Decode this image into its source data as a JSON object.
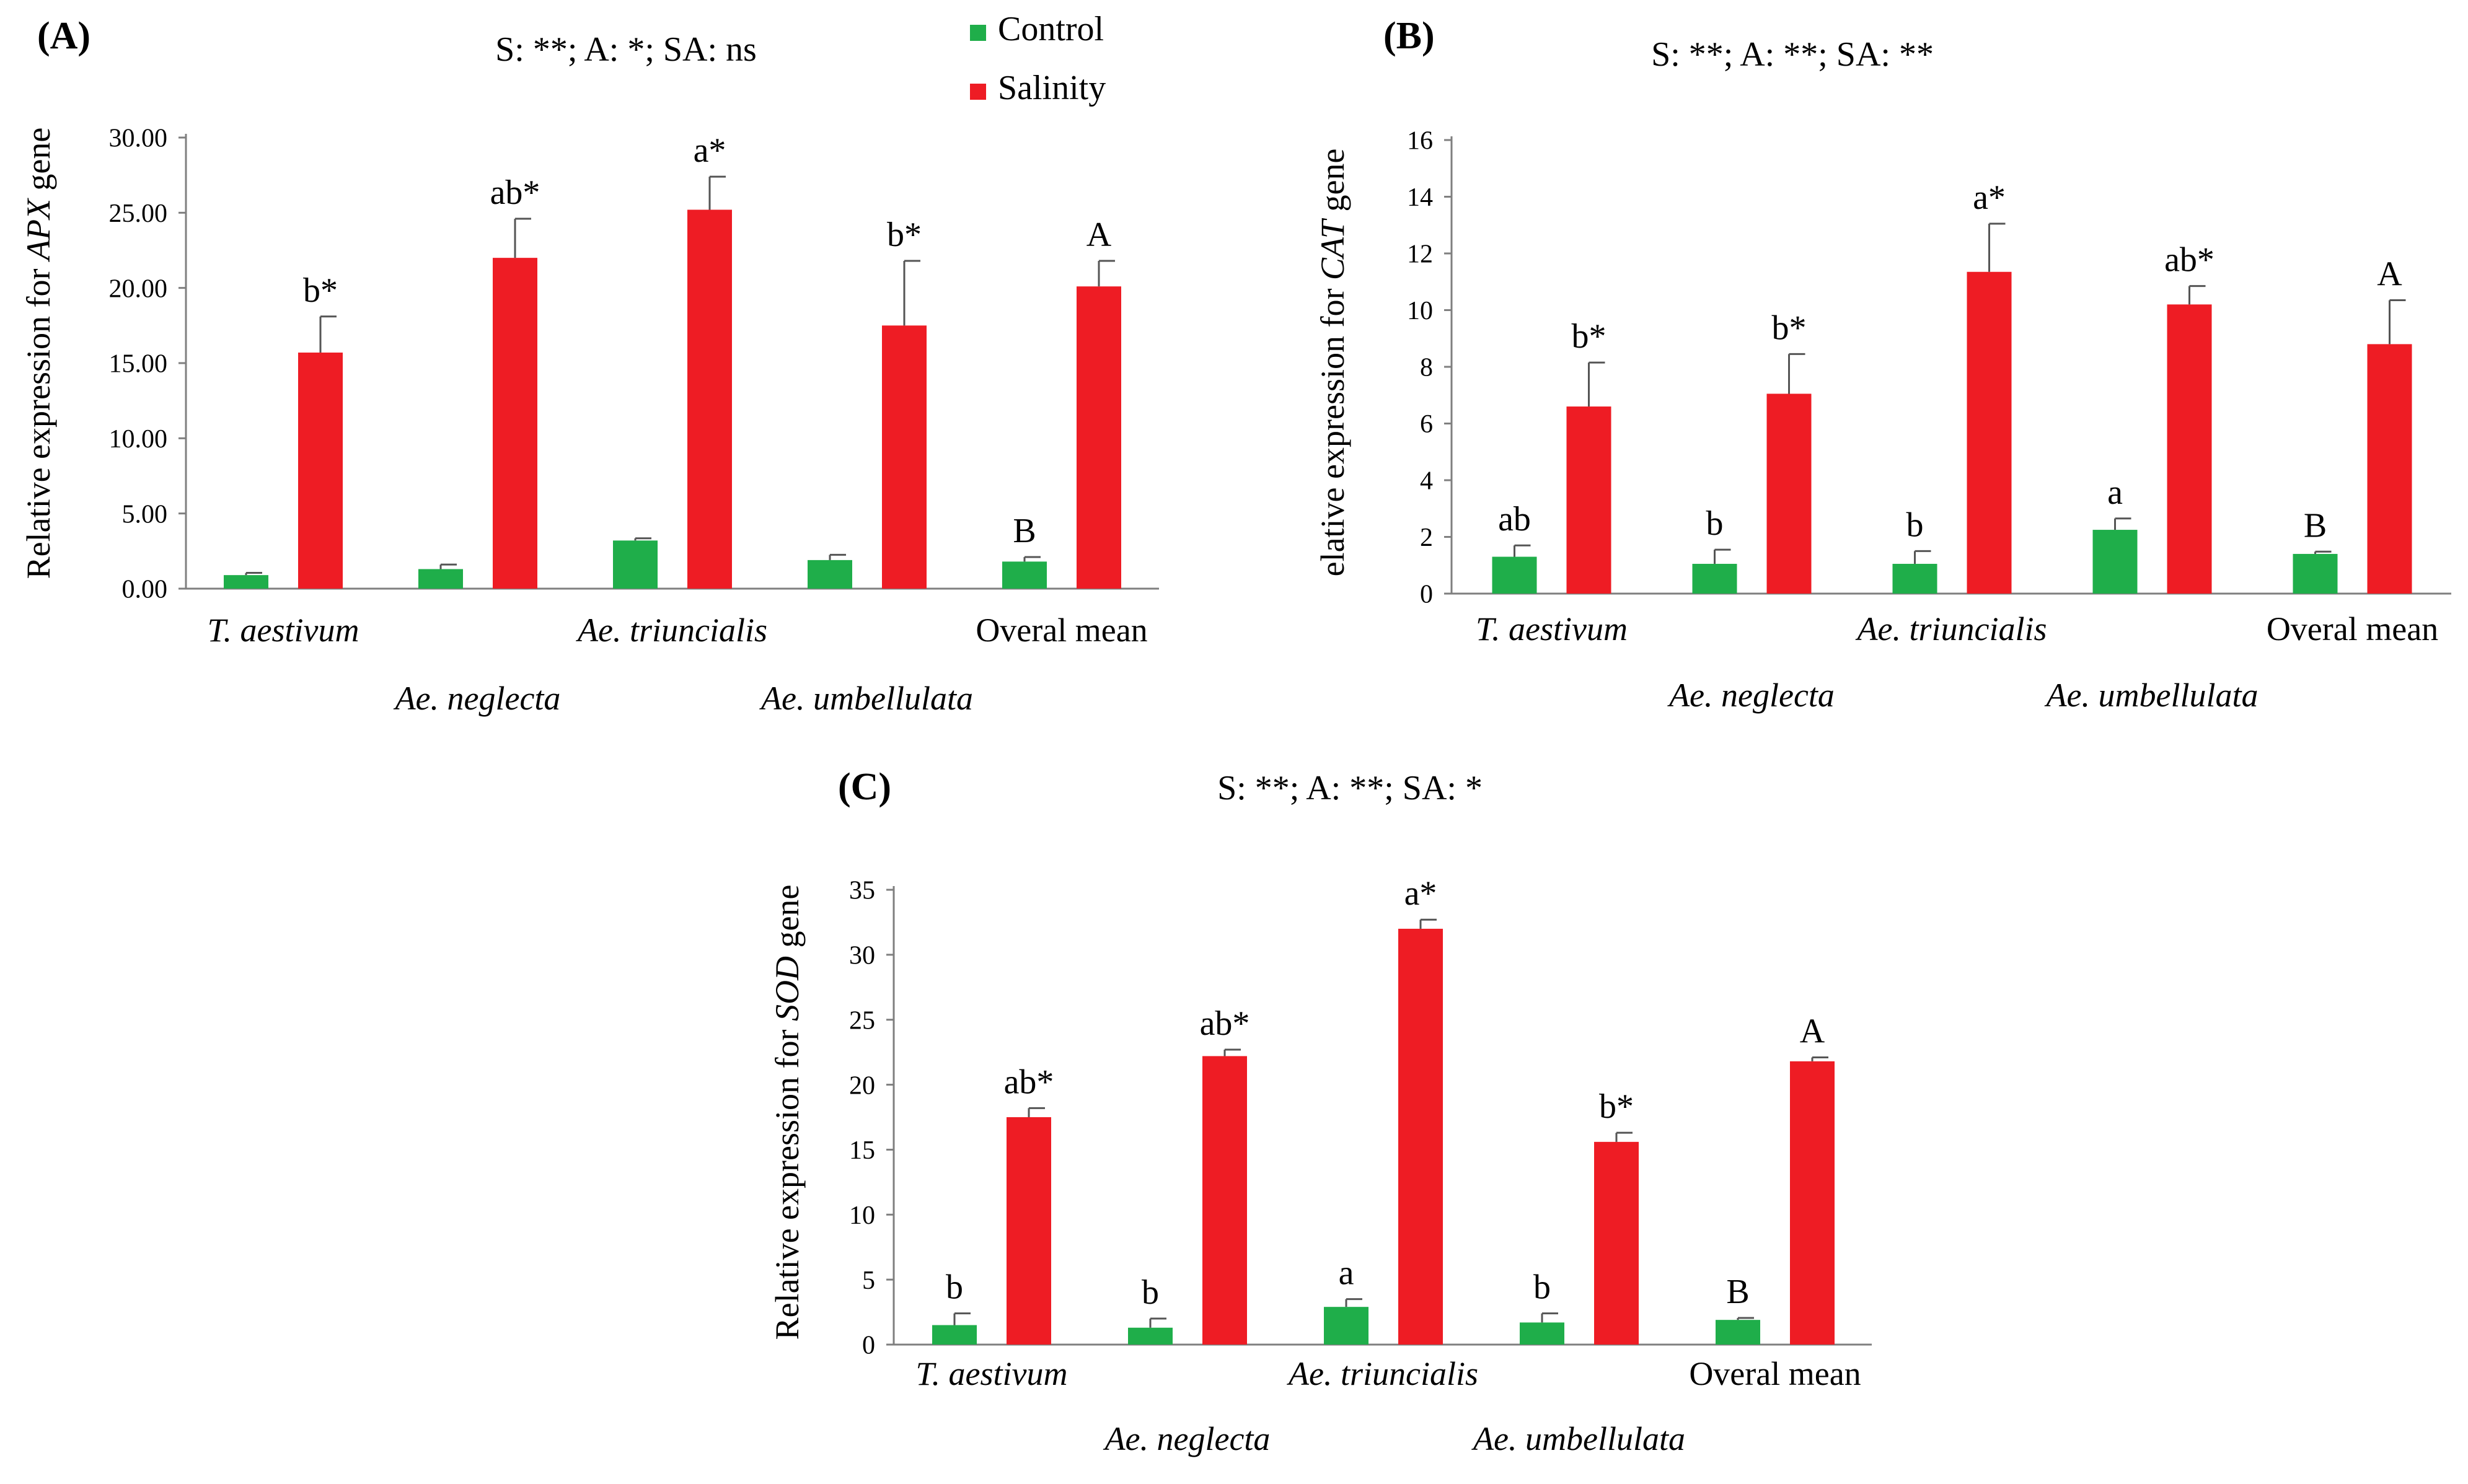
{
  "legend": {
    "placement": "top, between panels A and B",
    "items": [
      {
        "label": "Control",
        "color": "#1fae4a"
      },
      {
        "label": "Salinity",
        "color": "#ee1c24"
      }
    ]
  },
  "chart_data": [
    {
      "type": "bar",
      "panel_label": "(A)",
      "title": "S: **; A: *; SA: ns",
      "ylabel_prefix": "Relative expression for ",
      "ylabel_gene": "APX",
      "ylabel_suffix": " gene",
      "ylim": [
        0,
        30
      ],
      "yticks": [
        "0.00",
        "5.00",
        "10.00",
        "15.00",
        "20.00",
        "25.00",
        "30.00"
      ],
      "grid": false,
      "categories": [
        "T. aestivum",
        "Ae. neglecta",
        "Ae. triuncialis",
        "Ae. umbellulata",
        "Overal mean"
      ],
      "category_italic": [
        true,
        true,
        true,
        true,
        false
      ],
      "series": [
        {
          "name": "Control",
          "values": [
            0.9,
            1.3,
            3.2,
            1.9,
            1.8
          ],
          "errors": [
            0.15,
            0.3,
            0.15,
            0.35,
            0.3
          ],
          "labels": [
            "",
            "",
            "",
            "",
            "B"
          ]
        },
        {
          "name": "Salinity",
          "values": [
            15.7,
            22.0,
            25.2,
            17.5,
            20.1
          ],
          "errors": [
            2.4,
            2.6,
            2.2,
            4.3,
            1.7
          ],
          "labels": [
            "b*",
            "ab*",
            "a*",
            "b*",
            "A"
          ]
        }
      ]
    },
    {
      "type": "bar",
      "panel_label": "(B)",
      "title": "S: **; A: **; SA: **",
      "ylabel_prefix": "elative expression for ",
      "ylabel_gene": "CAT",
      "ylabel_suffix": " gene",
      "ylim": [
        0,
        16
      ],
      "yticks": [
        "0",
        "2",
        "4",
        "6",
        "8",
        "10",
        "12",
        "14",
        "16"
      ],
      "grid": false,
      "categories": [
        "T. aestivum",
        "Ae. neglecta",
        "Ae. triuncialis",
        "Ae. umbellulata",
        "Overal mean"
      ],
      "category_italic": [
        true,
        true,
        true,
        true,
        false
      ],
      "series": [
        {
          "name": "Control",
          "values": [
            1.3,
            1.05,
            1.05,
            2.25,
            1.4
          ],
          "errors": [
            0.4,
            0.5,
            0.45,
            0.4,
            0.08
          ],
          "labels": [
            "ab",
            "b",
            "b",
            "a",
            "B"
          ]
        },
        {
          "name": "Salinity",
          "values": [
            6.6,
            7.05,
            11.35,
            10.2,
            8.8
          ],
          "errors": [
            1.55,
            1.4,
            1.7,
            0.65,
            1.55
          ],
          "labels": [
            "b*",
            "b*",
            "a*",
            "ab*",
            "A"
          ]
        }
      ]
    },
    {
      "type": "bar",
      "panel_label": "(C)",
      "title": "S: **; A: **; SA: *",
      "ylabel_prefix": "Relative expression for ",
      "ylabel_gene": "SOD",
      "ylabel_suffix": " gene",
      "ylim": [
        0,
        35
      ],
      "yticks": [
        "0",
        "5",
        "10",
        "15",
        "20",
        "25",
        "30",
        "35"
      ],
      "grid": false,
      "categories": [
        "T. aestivum",
        "Ae. neglecta",
        "Ae. triuncialis",
        "Ae. umbellulata",
        "Overal mean"
      ],
      "category_italic": [
        true,
        true,
        true,
        true,
        false
      ],
      "series": [
        {
          "name": "Control",
          "values": [
            1.5,
            1.3,
            2.9,
            1.7,
            1.9
          ],
          "errors": [
            0.9,
            0.7,
            0.6,
            0.7,
            0.15
          ],
          "labels": [
            "b",
            "b",
            "a",
            "b",
            "B"
          ]
        },
        {
          "name": "Salinity",
          "values": [
            17.5,
            22.2,
            32.0,
            15.6,
            21.8
          ],
          "errors": [
            0.7,
            0.5,
            0.7,
            0.7,
            0.3
          ],
          "labels": [
            "ab*",
            "ab*",
            "a*",
            "b*",
            "A"
          ]
        }
      ]
    }
  ]
}
